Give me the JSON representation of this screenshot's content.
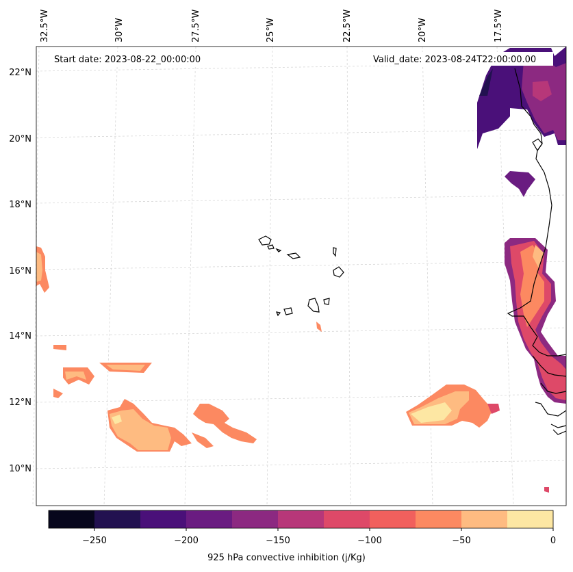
{
  "header": {
    "start_date": "Start date: 2023-08-22_00:00:00",
    "valid_date": "Valid_date: 2023-08-24T22:00:00.00"
  },
  "lon_labels": [
    "32.5°W",
    "30°W",
    "27.5°W",
    "25°W",
    "22.5°W",
    "20°W",
    "17.5°W"
  ],
  "lat_labels": [
    "22°N",
    "20°N",
    "18°N",
    "16°N",
    "14°N",
    "12°N",
    "10°N"
  ],
  "colorbar": {
    "title": "925 hPa convective inhibition (j/Kg)",
    "tick_labels": [
      "−250",
      "−200",
      "−150",
      "−100",
      "−50",
      "0"
    ],
    "levels": [
      -275,
      -250,
      -225,
      -200,
      -175,
      -150,
      -125,
      -100,
      -75,
      -50,
      -25,
      0
    ],
    "colors": [
      "#07061c",
      "#221150",
      "#4a1079",
      "#6a1c81",
      "#8c2981",
      "#b73779",
      "#de4968",
      "#f1605d",
      "#fc8961",
      "#febb81",
      "#fde7a3"
    ]
  }
}
